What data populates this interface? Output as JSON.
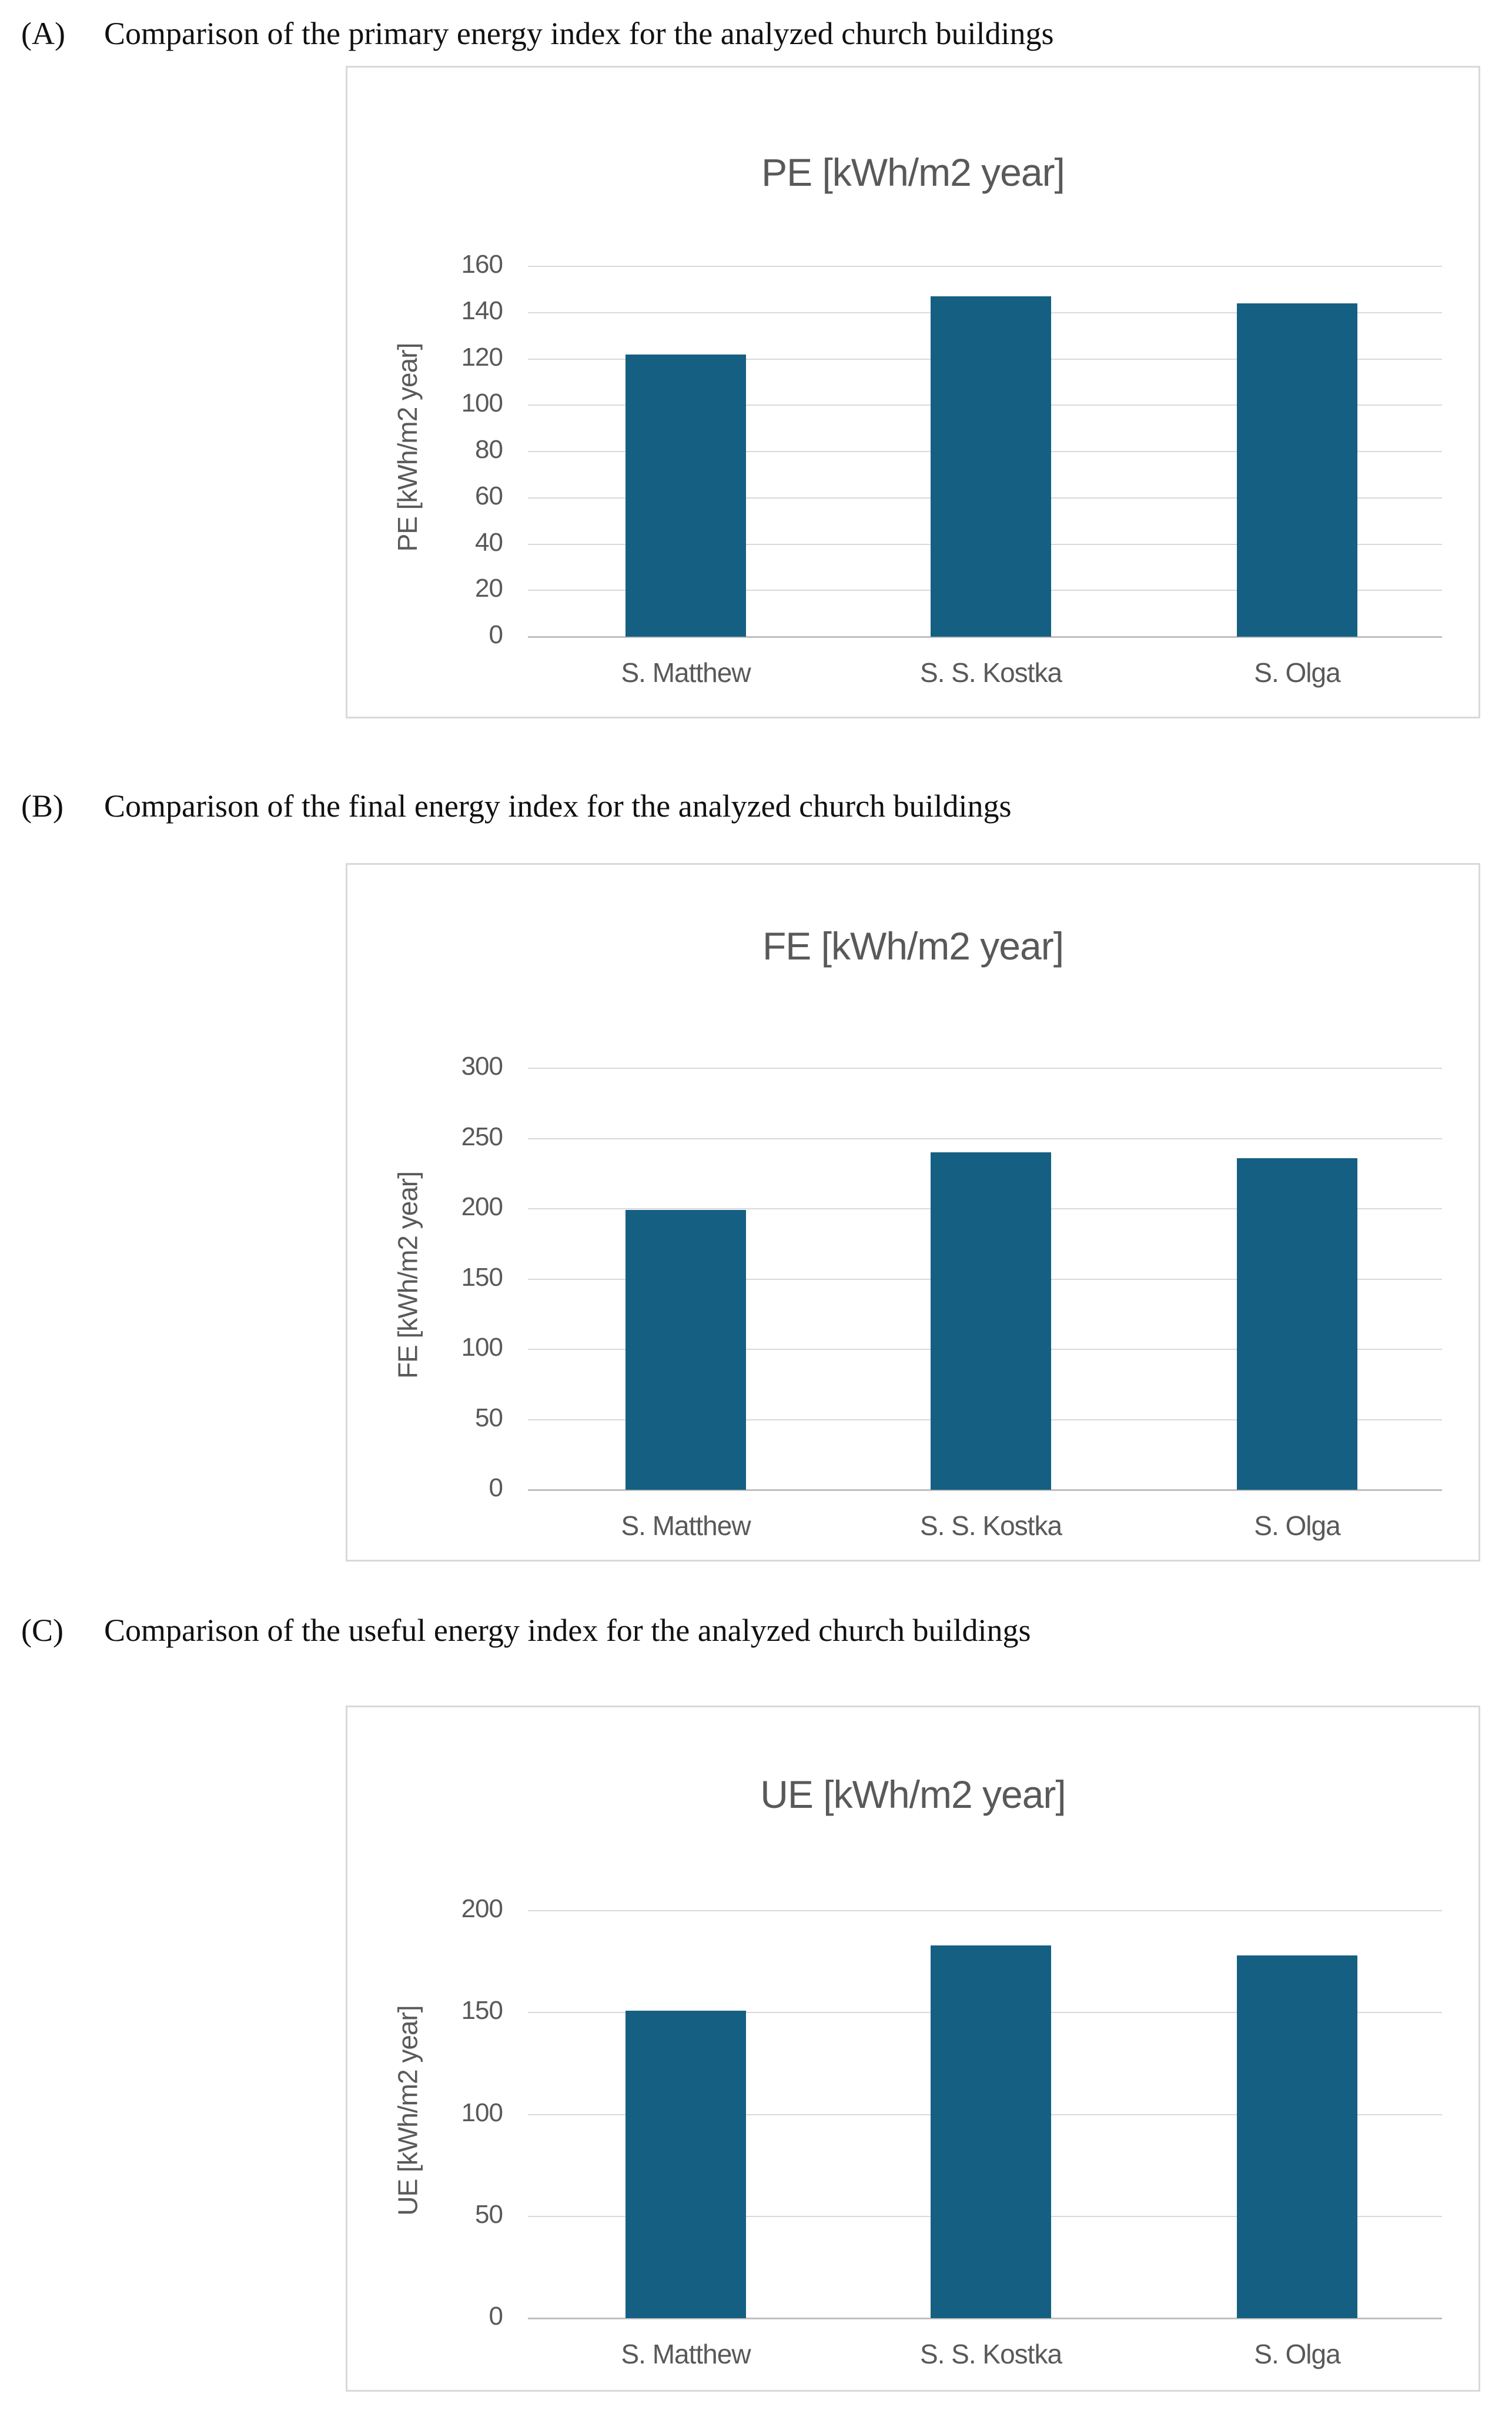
{
  "panels": [
    {
      "label": "(A)",
      "caption": "Comparison of the primary energy index for the analyzed church buildings"
    },
    {
      "label": "(B)",
      "caption": "Comparison of the final energy index for the analyzed church buildings"
    },
    {
      "label": "(C)",
      "caption": "Comparison of the useful energy index for the analyzed church buildings"
    }
  ],
  "chart_data": [
    {
      "type": "bar",
      "panel": "A",
      "title": "PE [kWh/m2 year]",
      "ylabel": "PE [kWh/m2 year]",
      "xlabel": "",
      "categories": [
        "S. Matthew",
        "S. S. Kostka",
        "S. Olga"
      ],
      "values": [
        122,
        147,
        144
      ],
      "ylim": [
        0,
        160
      ],
      "ytick_step": 20,
      "grid": true,
      "legend": "none",
      "bar_color": "#156082"
    },
    {
      "type": "bar",
      "panel": "B",
      "title": "FE [kWh/m2 year]",
      "ylabel": "FE [kWh/m2 year]",
      "xlabel": "",
      "categories": [
        "S. Matthew",
        "S. S. Kostka",
        "S. Olga"
      ],
      "values": [
        199,
        240,
        236
      ],
      "ylim": [
        0,
        300
      ],
      "ytick_step": 50,
      "grid": true,
      "legend": "none",
      "bar_color": "#156082"
    },
    {
      "type": "bar",
      "panel": "C",
      "title": "UE [kWh/m2 year]",
      "ylabel": "UE [kWh/m2 year]",
      "xlabel": "",
      "categories": [
        "S. Matthew",
        "S. S. Kostka",
        "S. Olga"
      ],
      "values": [
        151,
        183,
        178
      ],
      "ylim": [
        0,
        200
      ],
      "ytick_step": 50,
      "grid": true,
      "legend": "none",
      "bar_color": "#156082"
    }
  ],
  "colors": {
    "bar": "#156082",
    "gridline": "#D9D9D9",
    "axis_line": "#BFBFBF",
    "chart_text": "#595959",
    "box_border": "#D9D9D9",
    "heading_text": "#111111"
  }
}
